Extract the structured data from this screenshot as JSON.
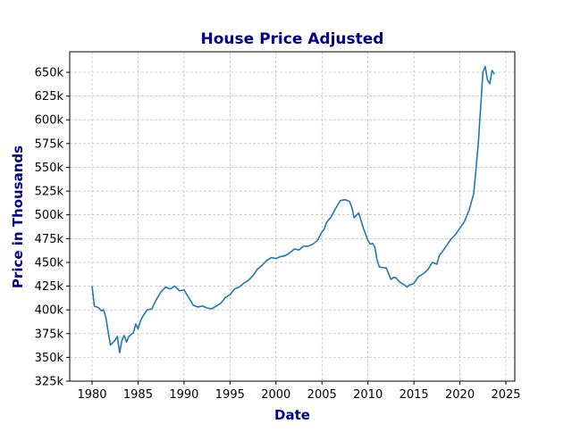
{
  "chart_data": {
    "type": "line",
    "title": "House Price Adjusted",
    "xlabel": "Date",
    "ylabel": "Price in Thousands",
    "color": "#1f77b4",
    "grid": true,
    "xlim": [
      1977.57,
      2025.97
    ],
    "xticks": [
      1980,
      1985,
      1990,
      1995,
      2000,
      2005,
      2010,
      2015,
      2020,
      2025
    ],
    "ylim": [
      325000,
      671600
    ],
    "yticks": [
      {
        "value": 325000,
        "label": "325k"
      },
      {
        "value": 350000,
        "label": "350k"
      },
      {
        "value": 375000,
        "label": "375k"
      },
      {
        "value": 400000,
        "label": "400k"
      },
      {
        "value": 425000,
        "label": "425k"
      },
      {
        "value": 450000,
        "label": "450k"
      },
      {
        "value": 475000,
        "label": "475k"
      },
      {
        "value": 500000,
        "label": "500k"
      },
      {
        "value": 525000,
        "label": "525k"
      },
      {
        "value": 550000,
        "label": "550k"
      },
      {
        "value": 575000,
        "label": "575k"
      },
      {
        "value": 600000,
        "label": "600k"
      },
      {
        "value": 625000,
        "label": "625k"
      },
      {
        "value": 650000,
        "label": "650k"
      }
    ],
    "x": [
      1980.0,
      1980.25,
      1980.75,
      1981.0,
      1981.25,
      1981.5,
      1981.75,
      1982.0,
      1982.5,
      1982.75,
      1983.0,
      1983.25,
      1983.5,
      1983.75,
      1984.0,
      1984.5,
      1984.75,
      1985.0,
      1985.25,
      1985.5,
      1986.0,
      1986.5,
      1987.0,
      1987.5,
      1988.0,
      1988.5,
      1989.0,
      1989.5,
      1990.0,
      1990.5,
      1991.0,
      1991.5,
      1992.0,
      1992.5,
      1993.0,
      1993.5,
      1994.0,
      1994.5,
      1995.0,
      1995.5,
      1996.0,
      1996.5,
      1997.0,
      1997.5,
      1998.0,
      1998.5,
      1999.0,
      1999.5,
      2000.0,
      2000.5,
      2001.0,
      2001.5,
      2002.0,
      2002.5,
      2003.0,
      2003.5,
      2004.0,
      2004.5,
      2005.0,
      2005.25,
      2005.5,
      2006.0,
      2006.5,
      2007.0,
      2007.5,
      2008.0,
      2008.25,
      2008.5,
      2009.0,
      2009.5,
      2010.0,
      2010.25,
      2010.5,
      2010.75,
      2011.0,
      2011.25,
      2012.0,
      2012.5,
      2012.75,
      2013.0,
      2013.5,
      2014.0,
      2014.25,
      2014.5,
      2015.0,
      2015.5,
      2016.0,
      2016.5,
      2017.0,
      2017.5,
      2017.75,
      2018.0,
      2018.5,
      2019.0,
      2019.5,
      2020.0,
      2020.5,
      2021.0,
      2021.5,
      2022.0,
      2022.25,
      2022.5,
      2022.75,
      2023.0,
      2023.25,
      2023.5,
      2023.75
    ],
    "values": [
      425000,
      404000,
      402000,
      399000,
      400000,
      392000,
      377000,
      363000,
      368000,
      372000,
      355000,
      368000,
      373000,
      366000,
      372000,
      376000,
      385000,
      380000,
      388000,
      393000,
      400000,
      401000,
      411000,
      419000,
      424000,
      422000,
      425000,
      420000,
      421000,
      413000,
      405000,
      403000,
      404000,
      402000,
      401000,
      404000,
      407000,
      413000,
      416000,
      422000,
      424000,
      428000,
      431000,
      436000,
      443000,
      447000,
      452000,
      455000,
      454000,
      456000,
      457000,
      460000,
      464000,
      463000,
      467000,
      467000,
      469000,
      473000,
      482000,
      485000,
      492000,
      498000,
      507000,
      515000,
      516000,
      514000,
      508000,
      497000,
      502000,
      486000,
      473000,
      469000,
      470000,
      466000,
      452000,
      445000,
      444000,
      432000,
      434000,
      434000,
      429000,
      426000,
      424000,
      426000,
      428000,
      435000,
      438000,
      442000,
      450000,
      448000,
      457000,
      460000,
      467000,
      474000,
      479000,
      486000,
      493000,
      505000,
      522000,
      575000,
      612000,
      650000,
      656000,
      642000,
      638000,
      652000,
      648000
    ]
  }
}
